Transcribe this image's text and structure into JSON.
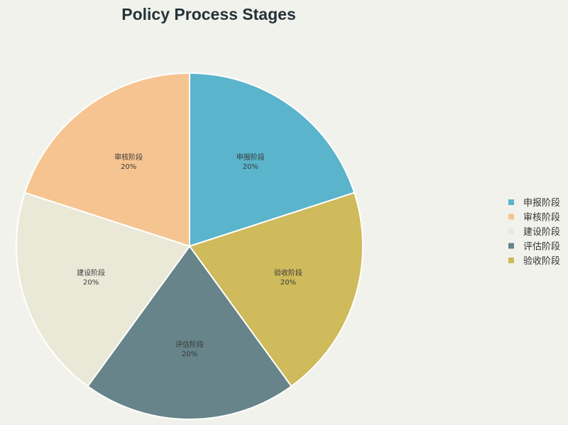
{
  "chart_data": {
    "type": "pie",
    "title": "Policy Process Stages",
    "categories": [
      "申报阶段",
      "审核阶段",
      "建设阶段",
      "评估阶段",
      "验收阶段"
    ],
    "values": [
      20,
      20,
      20,
      20,
      20
    ],
    "percent_labels": [
      "20%",
      "20%",
      "20%",
      "20%",
      "20%"
    ],
    "colors": [
      "#5ab4cb",
      "#f6c490",
      "#eae9d8",
      "#668489",
      "#cfba5c"
    ],
    "legend": {
      "placement": "right",
      "entries": [
        "申报阶段",
        "审核阶段",
        "建设阶段",
        "评估阶段",
        "验收阶段"
      ]
    },
    "slices": [
      {
        "label": "验收阶段",
        "value": 20,
        "percent": "20%",
        "color": "#cfba5c"
      },
      {
        "label": "评估阶段",
        "value": 20,
        "percent": "20%",
        "color": "#668489"
      },
      {
        "label": "建设阶段",
        "value": 20,
        "percent": "20%",
        "color": "#eae9d8"
      },
      {
        "label": "审核阶段",
        "value": 20,
        "percent": "20%",
        "color": "#f6c490"
      },
      {
        "label": "申报阶段",
        "value": 20,
        "percent": "20%",
        "color": "#5ab4cb"
      }
    ]
  }
}
